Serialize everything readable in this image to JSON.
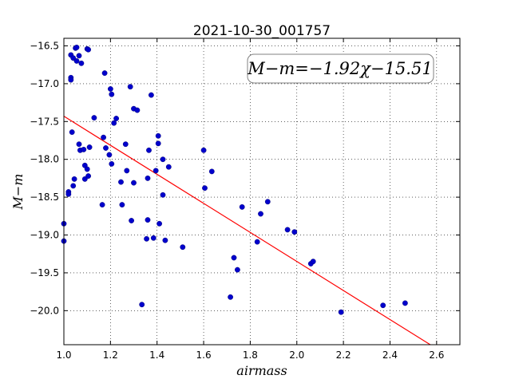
{
  "chart_data": {
    "type": "scatter",
    "title": "2021-10-30_001757",
    "xlabel": "airmass",
    "ylabel": "M−m",
    "xlim": [
      1.0,
      2.7
    ],
    "ylim": [
      -16.4,
      -20.45
    ],
    "x_ticks": [
      "1.0",
      "1.2",
      "1.4",
      "1.6",
      "1.8",
      "2.0",
      "2.2",
      "2.4",
      "2.6"
    ],
    "y_ticks": [
      "−16.5",
      "−17.0",
      "−17.5",
      "−18.0",
      "−18.5",
      "−19.0",
      "−19.5",
      "−20.0"
    ],
    "grid": true,
    "annotation": "M−m=−1.92χ−15.51",
    "fit": {
      "slope": -1.92,
      "intercept": -15.51,
      "color": "#ff0000"
    },
    "point_color": "#0000cc",
    "points": [
      [
        1.0,
        -18.85
      ],
      [
        1.0,
        -19.08
      ],
      [
        1.02,
        -18.43
      ],
      [
        1.02,
        -18.46
      ],
      [
        1.03,
        -16.92
      ],
      [
        1.03,
        -16.95
      ],
      [
        1.03,
        -16.62
      ],
      [
        1.04,
        -16.66
      ],
      [
        1.035,
        -17.64
      ],
      [
        1.04,
        -18.35
      ],
      [
        1.045,
        -18.26
      ],
      [
        1.05,
        -16.53
      ],
      [
        1.055,
        -16.52
      ],
      [
        1.055,
        -16.7
      ],
      [
        1.065,
        -16.63
      ],
      [
        1.065,
        -17.8
      ],
      [
        1.07,
        -17.88
      ],
      [
        1.075,
        -16.73
      ],
      [
        1.085,
        -17.87
      ],
      [
        1.09,
        -18.08
      ],
      [
        1.09,
        -18.26
      ],
      [
        1.1,
        -16.54
      ],
      [
        1.1,
        -18.13
      ],
      [
        1.105,
        -16.55
      ],
      [
        1.105,
        -18.22
      ],
      [
        1.11,
        -17.84
      ],
      [
        1.13,
        -17.45
      ],
      [
        1.165,
        -18.6
      ],
      [
        1.17,
        -17.71
      ],
      [
        1.175,
        -16.86
      ],
      [
        1.18,
        -17.85
      ],
      [
        1.195,
        -17.94
      ],
      [
        1.2,
        -17.07
      ],
      [
        1.205,
        -17.14
      ],
      [
        1.205,
        -18.06
      ],
      [
        1.215,
        -17.52
      ],
      [
        1.225,
        -17.46
      ],
      [
        1.245,
        -18.3
      ],
      [
        1.25,
        -18.6
      ],
      [
        1.265,
        -17.8
      ],
      [
        1.27,
        -18.15
      ],
      [
        1.285,
        -17.04
      ],
      [
        1.29,
        -18.81
      ],
      [
        1.3,
        -17.33
      ],
      [
        1.3,
        -18.31
      ],
      [
        1.315,
        -17.35
      ],
      [
        1.335,
        -19.92
      ],
      [
        1.355,
        -19.05
      ],
      [
        1.36,
        -18.25
      ],
      [
        1.36,
        -18.8
      ],
      [
        1.365,
        -17.88
      ],
      [
        1.375,
        -17.15
      ],
      [
        1.385,
        -19.04
      ],
      [
        1.395,
        -18.15
      ],
      [
        1.405,
        -17.69
      ],
      [
        1.405,
        -17.79
      ],
      [
        1.41,
        -18.85
      ],
      [
        1.425,
        -18.0
      ],
      [
        1.425,
        -18.47
      ],
      [
        1.435,
        -19.07
      ],
      [
        1.45,
        -18.1
      ],
      [
        1.51,
        -19.16
      ],
      [
        1.6,
        -17.88
      ],
      [
        1.605,
        -18.38
      ],
      [
        1.635,
        -18.16
      ],
      [
        1.715,
        -19.82
      ],
      [
        1.73,
        -19.3
      ],
      [
        1.745,
        -19.46
      ],
      [
        1.765,
        -18.63
      ],
      [
        1.83,
        -19.09
      ],
      [
        1.845,
        -18.72
      ],
      [
        1.875,
        -18.56
      ],
      [
        1.96,
        -18.93
      ],
      [
        1.99,
        -18.96
      ],
      [
        2.06,
        -19.38
      ],
      [
        2.07,
        -19.35
      ],
      [
        2.19,
        -20.02
      ],
      [
        2.37,
        -19.93
      ],
      [
        2.465,
        -19.9
      ]
    ]
  }
}
